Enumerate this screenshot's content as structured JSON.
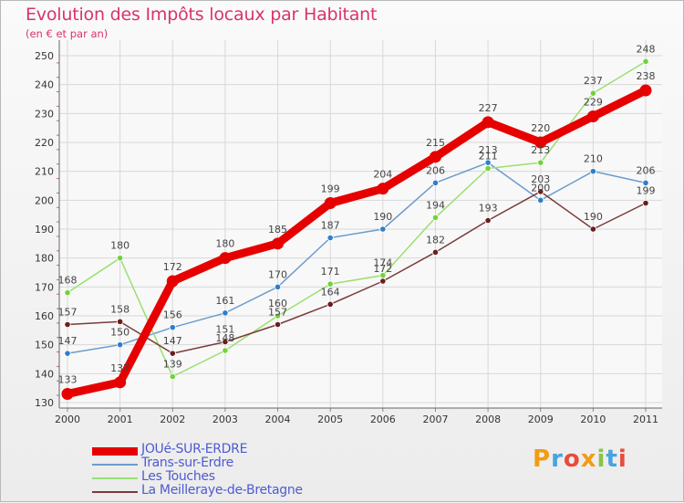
{
  "header": {
    "title": "Evolution des Impôts locaux par Habitant",
    "subtitle": "(en € et par an)"
  },
  "brand": {
    "name": "Proxiti",
    "letter_colors": [
      "#f39c12",
      "#4aa3df",
      "#e74c3c",
      "#f39c12",
      "#8bc34a",
      "#4aa3df",
      "#e74c3c"
    ]
  },
  "chart_data": {
    "type": "line",
    "title": "Evolution des Impôts locaux par Habitant",
    "subtitle": "(en € et par an)",
    "xlabel": "",
    "ylabel": "",
    "ylim": [
      130,
      250
    ],
    "yticks": [
      130,
      140,
      150,
      160,
      170,
      180,
      190,
      200,
      210,
      220,
      230,
      240,
      250
    ],
    "grid": true,
    "legend_position": "bottom-left",
    "categories": [
      "2000",
      "2001",
      "2002",
      "2003",
      "2004",
      "2005",
      "2006",
      "2007",
      "2008",
      "2009",
      "2010",
      "2011"
    ],
    "series": [
      {
        "name": "JOUé-SUR-ERDRE",
        "color": "#e60000",
        "bold": true,
        "values": [
          133,
          137,
          172,
          180,
          185,
          199,
          204,
          215,
          227,
          220,
          229,
          238
        ],
        "labels": [
          "133",
          "137",
          "172",
          "180",
          "185",
          "199",
          "204",
          "215",
          "227",
          "220",
          "229",
          "238"
        ]
      },
      {
        "name": "Trans-sur-Erdre",
        "color": "#6b9ccd",
        "point_color": "#2e7fc9",
        "bold": false,
        "values": [
          147,
          150,
          156,
          161,
          170,
          187,
          190,
          206,
          213,
          200,
          210,
          206
        ],
        "labels": [
          "147",
          "150",
          "156",
          "161",
          "170",
          "187",
          "190",
          "206",
          "213",
          "200",
          "210",
          "206"
        ]
      },
      {
        "name": "Les Touches",
        "color": "#99e070",
        "point_color": "#72d23a",
        "bold": false,
        "values": [
          168,
          180,
          139,
          148,
          160,
          171,
          174,
          194,
          211,
          213,
          237,
          248
        ],
        "labels": [
          "168",
          "180",
          "139",
          "148",
          "160",
          "171",
          "174",
          "194",
          "211",
          "213",
          "237",
          "248"
        ]
      },
      {
        "name": "La Meilleraye-de-Bretagne",
        "color": "#7a3a3a",
        "point_color": "#6b1d1d",
        "bold": false,
        "values": [
          157,
          158,
          147,
          151,
          157,
          164,
          172,
          182,
          193,
          203,
          190,
          199
        ],
        "labels": [
          "157",
          "158",
          "147",
          "151",
          "157",
          "164",
          "172",
          "182",
          "193",
          "203",
          "190",
          "199"
        ]
      }
    ]
  }
}
